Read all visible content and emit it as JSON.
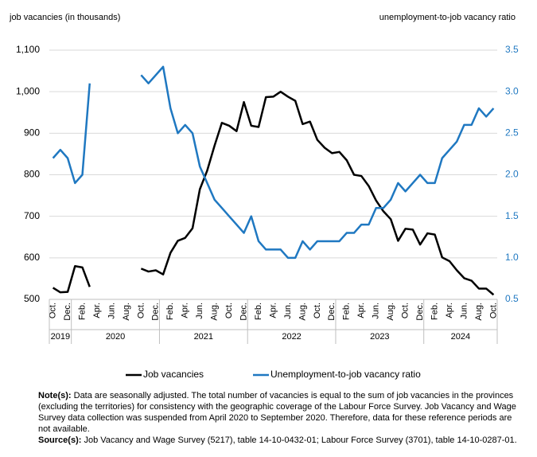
{
  "chart_data": {
    "type": "line",
    "y_axis_title": "job vacancies (in thousands)",
    "y2_axis_title": "unemployment-to-job vacancy ratio",
    "categories": [
      "Oct.",
      null,
      "Dec.",
      null,
      "Feb.",
      null,
      "Apr.",
      null,
      "Jun.",
      null,
      "Aug.",
      null,
      "Oct.",
      null,
      "Dec.",
      null,
      "Feb.",
      null,
      "Apr.",
      null,
      "Jun.",
      null,
      "Aug.",
      null,
      "Oct.",
      null,
      "Dec.",
      null,
      "Feb.",
      null,
      "Apr.",
      null,
      "Jun.",
      null,
      "Aug.",
      null,
      "Oct.",
      null,
      "Dec.",
      null,
      "Feb.",
      null,
      "Apr.",
      null,
      "Jun.",
      null,
      "Aug.",
      null,
      "Oct.",
      null,
      "Dec.",
      null,
      "Feb.",
      null,
      "Apr.",
      null,
      "Jun.",
      null,
      "Aug.",
      null,
      "Oct."
    ],
    "years": [
      "2019",
      "2020",
      "2021",
      "2022",
      "2023",
      "2024"
    ],
    "series": [
      {
        "name": "Job vacancies",
        "color": "#000000",
        "values": [
          528,
          517,
          518,
          580,
          577,
          530,
          null,
          null,
          null,
          null,
          null,
          null,
          574,
          567,
          570,
          560,
          612,
          641,
          648,
          671,
          765,
          810,
          870,
          925,
          918,
          905,
          975,
          918,
          915,
          987,
          988,
          1000,
          988,
          978,
          922,
          928,
          884,
          865,
          852,
          855,
          835,
          800,
          797,
          773,
          738,
          712,
          693,
          641,
          670,
          668,
          632,
          659,
          656,
          601,
          592,
          570,
          551,
          545,
          526,
          526,
          511
        ]
      },
      {
        "name": "Unemployment-to-job vacancy ratio",
        "color": "#1f78c1",
        "axis": "y2",
        "values": [
          2.2,
          2.3,
          2.2,
          1.9,
          2.0,
          3.1,
          null,
          null,
          null,
          null,
          null,
          null,
          3.2,
          3.1,
          3.2,
          3.3,
          2.8,
          2.5,
          2.6,
          2.5,
          2.1,
          1.9,
          1.7,
          1.6,
          1.5,
          1.4,
          1.3,
          1.5,
          1.2,
          1.1,
          1.1,
          1.1,
          1.0,
          1.0,
          1.2,
          1.1,
          1.2,
          1.2,
          1.2,
          1.2,
          1.3,
          1.3,
          1.4,
          1.4,
          1.6,
          1.6,
          1.7,
          1.9,
          1.8,
          1.9,
          2.0,
          1.9,
          1.9,
          2.2,
          2.3,
          2.4,
          2.6,
          2.6,
          2.8,
          2.7,
          2.8
        ]
      }
    ],
    "ylim": [
      500,
      1100
    ],
    "yticks": [
      500,
      600,
      700,
      800,
      900,
      {
        "value": 1000,
        "label": "1,000"
      },
      {
        "value": 1100,
        "label": "1,100"
      }
    ],
    "y2lim": [
      0.5,
      3.5
    ],
    "y2ticks": [
      0.5,
      {
        "value": 1,
        "label": "1.0"
      },
      1.5,
      {
        "value": 2,
        "label": "2.0"
      },
      2.5,
      {
        "value": 3,
        "label": "3.0"
      },
      3.5
    ],
    "grid": true,
    "legend": "bottom",
    "notes": {
      "label": "Note(s):",
      "text": "Data are seasonally adjusted. The total number of vacancies is equal to the sum of job vacancies in the provinces (excluding the territories) for consistency with the geographic coverage of the Labour Force Survey. Job Vacancy and Wage Survey data collection was suspended from April 2020 to September 2020. Therefore, data for these reference periods are not available."
    },
    "sources": {
      "label": "Source(s):",
      "text": "Job Vacancy and Wage Survey (5217), table 14-10-0432-01; Labour Force Survey (3701), table 14-10-0287-01."
    }
  }
}
